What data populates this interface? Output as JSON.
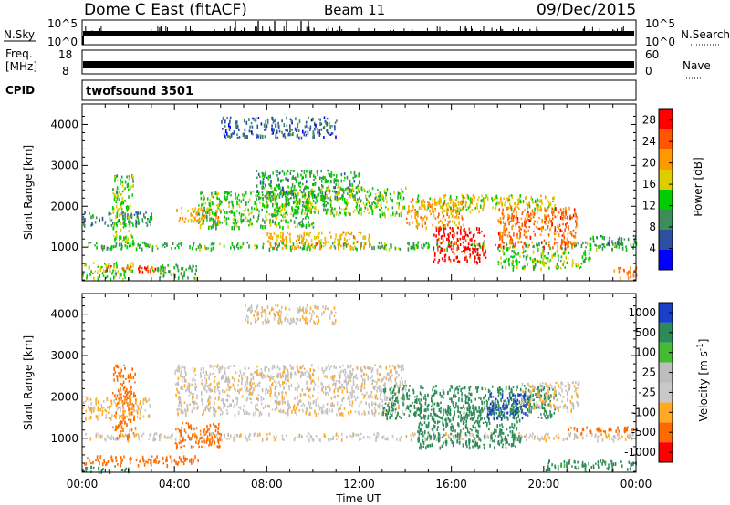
{
  "header": {
    "title": "Dome C East (fitACF)",
    "beam": "Beam 11",
    "date": "09/Dec/2015"
  },
  "nsky": {
    "label": "N.Sky",
    "top_tick": "10^5",
    "bottom_tick": "10^0",
    "right_label": "N.Search",
    "right_top_tick": "10^5",
    "right_bottom_tick": "10^0"
  },
  "freq": {
    "label_line1": "Freq.",
    "label_line2": "[MHz]",
    "top_tick": "18",
    "bottom_tick": "8",
    "right_label": "Nave",
    "right_top_tick": "60",
    "right_bottom_tick": "0"
  },
  "cpid": {
    "label": "CPID",
    "value": "twofsound 3501"
  },
  "colors": {
    "power": [
      "#0000ff",
      "#2d4fa0",
      "#3d8c5a",
      "#00cc00",
      "#ddcc00",
      "#ff9900",
      "#ff5500",
      "#ff0000"
    ],
    "velocity": [
      "#ff0000",
      "#ff6a00",
      "#ffaa22",
      "#c8c8c8",
      "#bdbdbd",
      "#44bb33",
      "#2e8b57",
      "#1a40c8"
    ]
  },
  "chart_data": [
    {
      "type": "heatmap",
      "title": "",
      "xlabel": "",
      "ylabel": "Slant Range [km]",
      "x_ticks": [
        "00:00",
        "04:00",
        "08:00",
        "12:00",
        "16:00",
        "20:00",
        "00:00"
      ],
      "x_range_hours": [
        0,
        24
      ],
      "ylim": [
        180,
        4500
      ],
      "y_ticks": [
        1000,
        2000,
        3000,
        4000
      ],
      "colorbar": {
        "label": "Power [dB]",
        "ticks": [
          "4",
          "8",
          "12",
          "16",
          "20",
          "24",
          "28"
        ],
        "range": [
          0,
          30
        ]
      },
      "echo_regions": [
        {
          "t0": 0.0,
          "t1": 24.0,
          "r0": 980,
          "r1": 1150,
          "value": 12
        },
        {
          "t0": 0.0,
          "t1": 3.0,
          "r0": 1550,
          "r1": 1900,
          "value": 9
        },
        {
          "t0": 0.0,
          "t1": 2.2,
          "r0": 250,
          "r1": 650,
          "value": 15
        },
        {
          "t0": 1.0,
          "t1": 3.5,
          "r0": 420,
          "r1": 560,
          "value": 26
        },
        {
          "t0": 1.3,
          "t1": 2.2,
          "r0": 1100,
          "r1": 2800,
          "value": 14
        },
        {
          "t0": 3.0,
          "t1": 5.0,
          "r0": 250,
          "r1": 600,
          "value": 12
        },
        {
          "t0": 4.0,
          "t1": 6.0,
          "r0": 1600,
          "r1": 2000,
          "value": 20
        },
        {
          "t0": 5.0,
          "t1": 10.0,
          "r0": 1500,
          "r1": 2400,
          "value": 13
        },
        {
          "t0": 7.5,
          "t1": 12.0,
          "r0": 2200,
          "r1": 2900,
          "value": 10
        },
        {
          "t0": 8.0,
          "t1": 14.0,
          "r0": 1800,
          "r1": 2500,
          "value": 14
        },
        {
          "t0": 8.0,
          "t1": 12.5,
          "r0": 1000,
          "r1": 1400,
          "value": 19
        },
        {
          "t0": 14.0,
          "t1": 16.5,
          "r0": 1500,
          "r1": 2200,
          "value": 21
        },
        {
          "t0": 15.2,
          "t1": 17.5,
          "r0": 650,
          "r1": 1500,
          "value": 29
        },
        {
          "t0": 14.5,
          "t1": 20.5,
          "r0": 1900,
          "r1": 2300,
          "value": 17
        },
        {
          "t0": 18.0,
          "t1": 21.5,
          "r0": 1000,
          "r1": 2000,
          "value": 23
        },
        {
          "t0": 18.0,
          "t1": 22.0,
          "r0": 500,
          "r1": 950,
          "value": 14
        },
        {
          "t0": 22.0,
          "t1": 24.0,
          "r0": 1100,
          "r1": 1300,
          "value": 9
        },
        {
          "t0": 23.0,
          "t1": 24.0,
          "r0": 250,
          "r1": 550,
          "value": 24
        },
        {
          "t0": 6.0,
          "t1": 11.0,
          "r0": 3700,
          "r1": 4200,
          "value": 7
        }
      ]
    },
    {
      "type": "heatmap",
      "title": "",
      "xlabel": "Time UT",
      "ylabel": "Slant Range [km]",
      "x_ticks": [
        "00:00",
        "04:00",
        "08:00",
        "12:00",
        "16:00",
        "20:00",
        "00:00"
      ],
      "x_range_hours": [
        0,
        24
      ],
      "ylim": [
        180,
        4500
      ],
      "y_ticks": [
        1000,
        2000,
        3000,
        4000
      ],
      "colorbar": {
        "label": "Velocity [m s^-1]",
        "ticks": [
          "1000",
          "500",
          "100",
          "25",
          "-25",
          "-100",
          "-500",
          "-1000"
        ],
        "range": [
          -1000,
          1000
        ]
      },
      "echo_regions": [
        {
          "t0": 0.0,
          "t1": 24.0,
          "r0": 980,
          "r1": 1150,
          "value": -10
        },
        {
          "t0": 0.0,
          "t1": 5.0,
          "r0": 380,
          "r1": 600,
          "value": -200
        },
        {
          "t0": 0.0,
          "t1": 2.0,
          "r0": 200,
          "r1": 350,
          "value": 200
        },
        {
          "t0": 1.3,
          "t1": 2.3,
          "r0": 1000,
          "r1": 2800,
          "value": -150
        },
        {
          "t0": 0.0,
          "t1": 3.0,
          "r0": 1500,
          "r1": 2000,
          "value": -30
        },
        {
          "t0": 4.0,
          "t1": 6.0,
          "r0": 800,
          "r1": 1400,
          "value": -300
        },
        {
          "t0": 4.0,
          "t1": 14.0,
          "r0": 1600,
          "r1": 2800,
          "value": -10
        },
        {
          "t0": 13.0,
          "t1": 20.5,
          "r0": 1500,
          "r1": 2300,
          "value": 200
        },
        {
          "t0": 14.5,
          "t1": 19.0,
          "r0": 800,
          "r1": 1800,
          "value": 300
        },
        {
          "t0": 17.5,
          "t1": 19.3,
          "r0": 1500,
          "r1": 2100,
          "value": 900
        },
        {
          "t0": 19.0,
          "t1": 21.5,
          "r0": 1700,
          "r1": 2400,
          "value": -15
        },
        {
          "t0": 21.0,
          "t1": 24.0,
          "r0": 1150,
          "r1": 1300,
          "value": -300
        },
        {
          "t0": 20.0,
          "t1": 24.0,
          "r0": 250,
          "r1": 500,
          "value": 150
        },
        {
          "t0": 7.0,
          "t1": 11.0,
          "r0": 3800,
          "r1": 4250,
          "value": -20
        }
      ]
    }
  ]
}
